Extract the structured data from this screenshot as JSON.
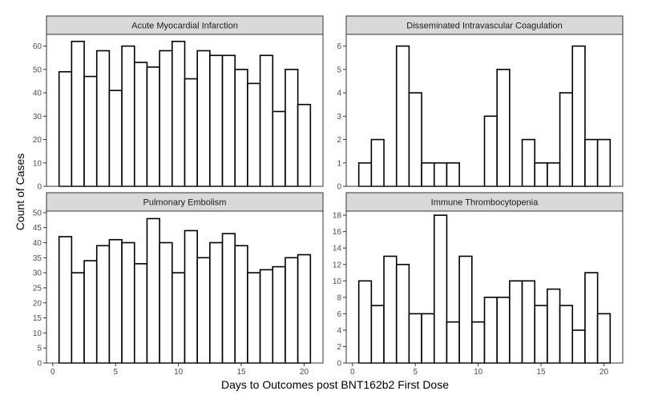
{
  "figure": {
    "xlabel": "Days to Outcomes post BNT162b2 First Dose",
    "ylabel": "Count of Cases"
  },
  "chart_data": [
    {
      "type": "bar",
      "title": "Acute Myocardial Infarction",
      "x": [
        1,
        2,
        3,
        4,
        5,
        6,
        7,
        8,
        9,
        10,
        11,
        12,
        13,
        14,
        15,
        16,
        17,
        18,
        19,
        20
      ],
      "values": [
        49,
        62,
        47,
        58,
        41,
        60,
        53,
        51,
        58,
        62,
        46,
        58,
        56,
        56,
        50,
        44,
        56,
        32,
        50,
        35
      ],
      "xlim": [
        -0.5,
        21.5
      ],
      "xticks": [
        0,
        5,
        10,
        15,
        20
      ],
      "ylim": [
        0,
        65
      ],
      "yticks": [
        0,
        10,
        20,
        30,
        40,
        50,
        60
      ]
    },
    {
      "type": "bar",
      "title": "Disseminated Intravascular Coagulation",
      "x": [
        1,
        2,
        3,
        4,
        5,
        6,
        7,
        8,
        9,
        10,
        11,
        12,
        13,
        14,
        15,
        16,
        17,
        18,
        19,
        20
      ],
      "values": [
        1,
        2,
        0,
        6,
        4,
        1,
        1,
        1,
        0,
        0,
        3,
        5,
        0,
        2,
        1,
        1,
        4,
        6,
        2,
        2
      ],
      "xlim": [
        -0.5,
        21.5
      ],
      "xticks": [
        0,
        5,
        10,
        15,
        20
      ],
      "ylim": [
        0,
        6.5
      ],
      "yticks": [
        0,
        1,
        2,
        3,
        4,
        5,
        6
      ]
    },
    {
      "type": "bar",
      "title": "Pulmonary Embolism",
      "x": [
        1,
        2,
        3,
        4,
        5,
        6,
        7,
        8,
        9,
        10,
        11,
        12,
        13,
        14,
        15,
        16,
        17,
        18,
        19,
        20
      ],
      "values": [
        42,
        30,
        34,
        39,
        41,
        40,
        33,
        48,
        40,
        30,
        44,
        35,
        40,
        43,
        39,
        30,
        31,
        32,
        35,
        36
      ],
      "xlim": [
        -0.5,
        21.5
      ],
      "xticks": [
        0,
        5,
        10,
        15,
        20
      ],
      "ylim": [
        0,
        50.5
      ],
      "yticks": [
        0,
        5,
        10,
        15,
        20,
        25,
        30,
        35,
        40,
        45,
        50
      ]
    },
    {
      "type": "bar",
      "title": "Immune Thrombocytopenia",
      "x": [
        1,
        2,
        3,
        4,
        5,
        6,
        7,
        8,
        9,
        10,
        11,
        12,
        13,
        14,
        15,
        16,
        17,
        18,
        19,
        20
      ],
      "values": [
        10,
        7,
        13,
        12,
        6,
        6,
        18,
        5,
        13,
        5,
        8,
        8,
        10,
        10,
        7,
        9,
        7,
        4,
        11,
        6
      ],
      "xlim": [
        -0.5,
        21.5
      ],
      "xticks": [
        0,
        5,
        10,
        15,
        20
      ],
      "ylim": [
        0,
        18.5
      ],
      "yticks": [
        0,
        2,
        4,
        6,
        8,
        10,
        12,
        14,
        16,
        18
      ]
    }
  ]
}
